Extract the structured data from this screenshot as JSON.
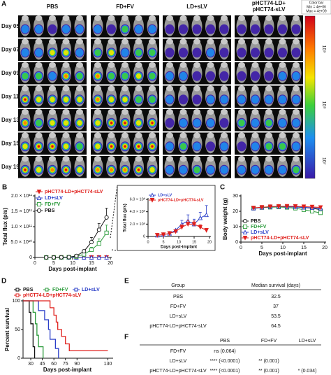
{
  "panel_a": {
    "label": "A",
    "groups": [
      "PBS",
      "FD+FV",
      "LD+sLV",
      [
        "pHCT74-LD+",
        "pHCT74-sLV"
      ]
    ],
    "days": [
      "Day 05",
      "Day 07",
      "Day 09",
      "Day 11",
      "Day 13",
      "Day 15",
      "Day 19"
    ],
    "colorbar": {
      "title": "Color bar",
      "min": "Min = 4e+06",
      "max": "Max = 4e+09",
      "ticks": [
        "10⁹",
        "10⁸",
        "10⁷"
      ]
    }
  },
  "chart_data": [
    {
      "type": "line",
      "panel": "B",
      "xlabel": "Days post-implant",
      "ylabel": "Total flux (p/s)",
      "legend": "upper left",
      "x": [
        3,
        5,
        7,
        9,
        11,
        13,
        15,
        17,
        19
      ],
      "xlim": [
        0,
        20
      ],
      "xticks": [
        0,
        5,
        10,
        15,
        20
      ],
      "ylim": [
        0,
        200000000000
      ],
      "yticks": [
        0,
        {
          "value": 50000000000,
          "label": "5.0 × 10¹⁰"
        },
        {
          "value": 100000000000,
          "label": "1.0 × 10¹¹"
        },
        {
          "value": 150000000000,
          "label": "1.5 × 10¹¹"
        },
        {
          "value": 200000000000,
          "label": "2.0 × 10¹¹"
        }
      ],
      "series": [
        {
          "name": "pHCT74-LD+pHCT74-sLV",
          "color": "#e0201c",
          "marker": "triangle-down",
          "values": [
            20000000,
            30000000,
            50000000,
            80000000,
            150000000,
            200000000,
            200000000,
            150000000,
            100000000
          ]
        },
        {
          "name": "LD+sLV",
          "color": "#2a3ec8",
          "marker": "triangle",
          "values": [
            20000000,
            30000000,
            50000000,
            100000000,
            200000000,
            250000000,
            200000000,
            300000000,
            350000000
          ]
        },
        {
          "name": "FD+FV",
          "color": "#2a9a3a",
          "marker": "square",
          "values": [
            100000000,
            100000000,
            300000000,
            800000000,
            3000000000,
            10000000000,
            25000000000,
            45000000000,
            80000000000
          ],
          "errors": [
            0,
            0,
            0,
            0,
            1000000000,
            4000000000,
            8000000000,
            15000000000,
            25000000000
          ]
        },
        {
          "name": "PBS",
          "color": "#111111",
          "marker": "circle",
          "values": [
            100000000,
            200000000,
            500000000,
            1000000000,
            5000000000,
            20000000000,
            50000000000,
            90000000000,
            130000000000
          ],
          "errors": [
            0,
            0,
            0,
            0,
            2000000000,
            5000000000,
            15000000000,
            20000000000,
            30000000000
          ]
        }
      ]
    },
    {
      "type": "line",
      "xlabel": "Days post-implant",
      "ylabel": "Total flux (p/s)",
      "legend": "upper left",
      "x": [
        3,
        5,
        7,
        9,
        11,
        13,
        15,
        17,
        19
      ],
      "xlim": [
        0,
        20
      ],
      "xticks": [
        0,
        5,
        10,
        15,
        20
      ],
      "ylim": [
        0,
        600000000
      ],
      "yticks": [
        0,
        {
          "value": 200000000,
          "label": "2.0 × 10⁸"
        },
        {
          "value": 400000000,
          "label": "4.0 × 10⁸"
        },
        {
          "value": 600000000,
          "label": "6.0 × 10⁸"
        }
      ],
      "series": [
        {
          "name": "LD+sLV",
          "color": "#2a3ec8",
          "marker": "triangle",
          "values": [
            20000000,
            30000000,
            50000000,
            100000000,
            200000000,
            250000000,
            200000000,
            300000000,
            350000000
          ],
          "errors": [
            0,
            0,
            0,
            0,
            60000000,
            100000000,
            80000000,
            90000000,
            150000000
          ]
        },
        {
          "name": "pHCT74-LD+pHCT74-sLV",
          "color": "#e0201c",
          "marker": "triangle-down",
          "values": [
            20000000,
            30000000,
            50000000,
            80000000,
            150000000,
            200000000,
            200000000,
            150000000,
            100000000
          ],
          "errors": [
            0,
            0,
            0,
            0,
            40000000,
            60000000,
            50000000,
            40000000,
            30000000
          ]
        }
      ]
    },
    {
      "type": "line",
      "panel": "C",
      "xlabel": "Days post-implant",
      "ylabel": "Body weight (g)",
      "legend": "lower left",
      "x": [
        3,
        5,
        7,
        9,
        11,
        13,
        15,
        17,
        19
      ],
      "xlim": [
        0,
        20
      ],
      "xticks": [
        0,
        5,
        10,
        15,
        20
      ],
      "ylim": [
        0,
        30
      ],
      "yticks": [
        0,
        10,
        20,
        30
      ],
      "series": [
        {
          "name": "PBS",
          "color": "#111111",
          "marker": "circle",
          "values": [
            22,
            22.5,
            22.8,
            23,
            23,
            22.8,
            22.5,
            22,
            21
          ]
        },
        {
          "name": "FD+FV",
          "color": "#2a9a3a",
          "marker": "square",
          "values": [
            22,
            22.4,
            22.6,
            22.8,
            22.5,
            22,
            21,
            20,
            19
          ]
        },
        {
          "name": "LD+sLV",
          "color": "#2a3ec8",
          "marker": "triangle",
          "values": [
            22,
            22.5,
            23,
            23.2,
            23,
            22.8,
            22.5,
            22.3,
            22
          ]
        },
        {
          "name": "pHCT74-LD+pHCT74-sLV",
          "color": "#e0201c",
          "marker": "triangle-down",
          "values": [
            22.2,
            22.6,
            23,
            23.2,
            23.3,
            23.2,
            23,
            22.8,
            22.5
          ]
        }
      ]
    },
    {
      "type": "step",
      "panel": "D",
      "xlabel": "Days post-implant",
      "ylabel": "Percent survival",
      "legend": "top",
      "xlim": [
        20,
        135
      ],
      "xticks": [
        30,
        45,
        60,
        75,
        90,
        130
      ],
      "ylim": [
        0,
        100
      ],
      "yticks": [
        0,
        50,
        100
      ],
      "series": [
        {
          "name": "PBS",
          "color": "#111111",
          "x": [
            20,
            28,
            28,
            30,
            30,
            33,
            33,
            35,
            35
          ],
          "values": [
            100,
            100,
            80,
            80,
            60,
            60,
            20,
            20,
            0
          ]
        },
        {
          "name": "FD+FV",
          "color": "#2a9a3a",
          "x": [
            20,
            33,
            33,
            36,
            36,
            38,
            38,
            40,
            40,
            46,
            46
          ],
          "values": [
            100,
            100,
            80,
            80,
            60,
            60,
            40,
            40,
            20,
            20,
            0
          ]
        },
        {
          "name": "LD+sLV",
          "color": "#2a3ec8",
          "x": [
            20,
            40,
            40,
            48,
            48,
            53,
            53,
            55,
            55,
            62,
            62,
            66,
            66
          ],
          "values": [
            100,
            100,
            83,
            83,
            67,
            67,
            50,
            50,
            33,
            33,
            17,
            17,
            0
          ]
        },
        {
          "name": "pHCT74-LD+pHCT74-sLV",
          "color": "#e0201c",
          "x": [
            20,
            55,
            55,
            60,
            60,
            63,
            63,
            65,
            65,
            70,
            70,
            75,
            75,
            80,
            80,
            130
          ],
          "values": [
            100,
            100,
            88,
            88,
            75,
            75,
            63,
            63,
            50,
            50,
            38,
            38,
            25,
            25,
            13,
            13
          ]
        }
      ]
    }
  ],
  "panel_e": {
    "label": "E",
    "header": [
      "Group",
      "Median survival (days)"
    ],
    "rows": [
      [
        "PBS",
        "32.5"
      ],
      [
        "FD+FV",
        "37"
      ],
      [
        "LD+sLV",
        "53.5"
      ],
      [
        "pHCT74-LD+pHCT74-sLV",
        "64.5"
      ]
    ]
  },
  "panel_f": {
    "label": "F",
    "header": [
      "PBS",
      "FD+FV",
      "LD+sLV"
    ],
    "rows": [
      {
        "group": "FD+FV",
        "cells": [
          "ns (0.064)"
        ]
      },
      {
        "group": "LD+sLV",
        "cells": [
          "**** (<0.0001)",
          "** (0.001)"
        ]
      },
      {
        "group": "pHCT74-LD+pHCT74-sLV",
        "cells": [
          "**** (<0.0001)",
          "** (0.001)",
          "* (0.034)"
        ]
      }
    ]
  }
}
